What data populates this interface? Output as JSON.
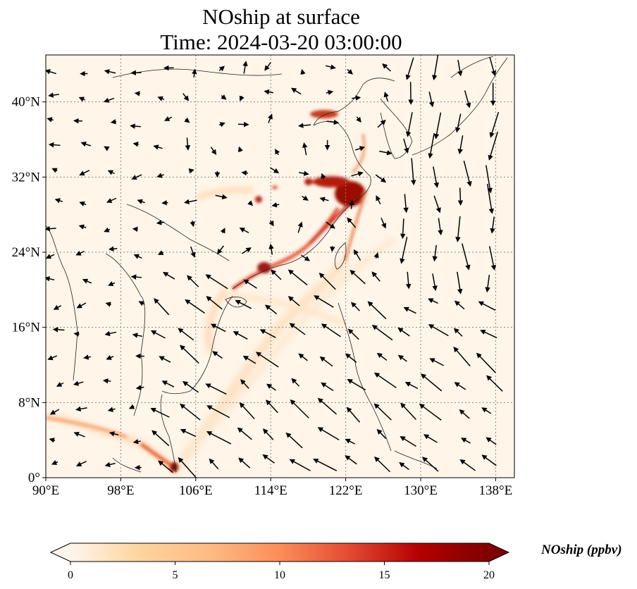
{
  "figure": {
    "title_line1": "NOship at surface",
    "title_line2": "Time: 2024-03-20 03:00:00"
  },
  "map": {
    "lon_range": [
      90,
      140
    ],
    "lat_range": [
      0,
      45
    ],
    "lon_ticks": [
      {
        "value": 90,
        "label": "90°E"
      },
      {
        "value": 98,
        "label": "98°E"
      },
      {
        "value": 106,
        "label": "106°E"
      },
      {
        "value": 114,
        "label": "114°E"
      },
      {
        "value": 122,
        "label": "122°E"
      },
      {
        "value": 130,
        "label": "130°E"
      },
      {
        "value": 138,
        "label": "138°E"
      }
    ],
    "lat_ticks": [
      {
        "value": 0,
        "label": "0°"
      },
      {
        "value": 8,
        "label": "8°N"
      },
      {
        "value": 16,
        "label": "16°N"
      },
      {
        "value": 24,
        "label": "24°N"
      },
      {
        "value": 32,
        "label": "32°N"
      },
      {
        "value": 40,
        "label": "40°N"
      }
    ],
    "gridlines": true,
    "colors": {
      "background": "#fff5e8",
      "coast": "#222222",
      "grid": "#888888",
      "arrow": "#000000"
    }
  },
  "colorbar": {
    "label": "NOship (ppbv)",
    "min": 0,
    "max": 20,
    "ticks": [
      {
        "value": 0,
        "label": "0"
      },
      {
        "value": 5,
        "label": "5"
      },
      {
        "value": 10,
        "label": "10"
      },
      {
        "value": 15,
        "label": "15"
      },
      {
        "value": 20,
        "label": "20"
      }
    ],
    "colors": [
      "#fff5eb",
      "#fdd49e",
      "#fdbb84",
      "#fc8d59",
      "#e34a33",
      "#b30000",
      "#7f0000"
    ],
    "extend": "both"
  }
}
